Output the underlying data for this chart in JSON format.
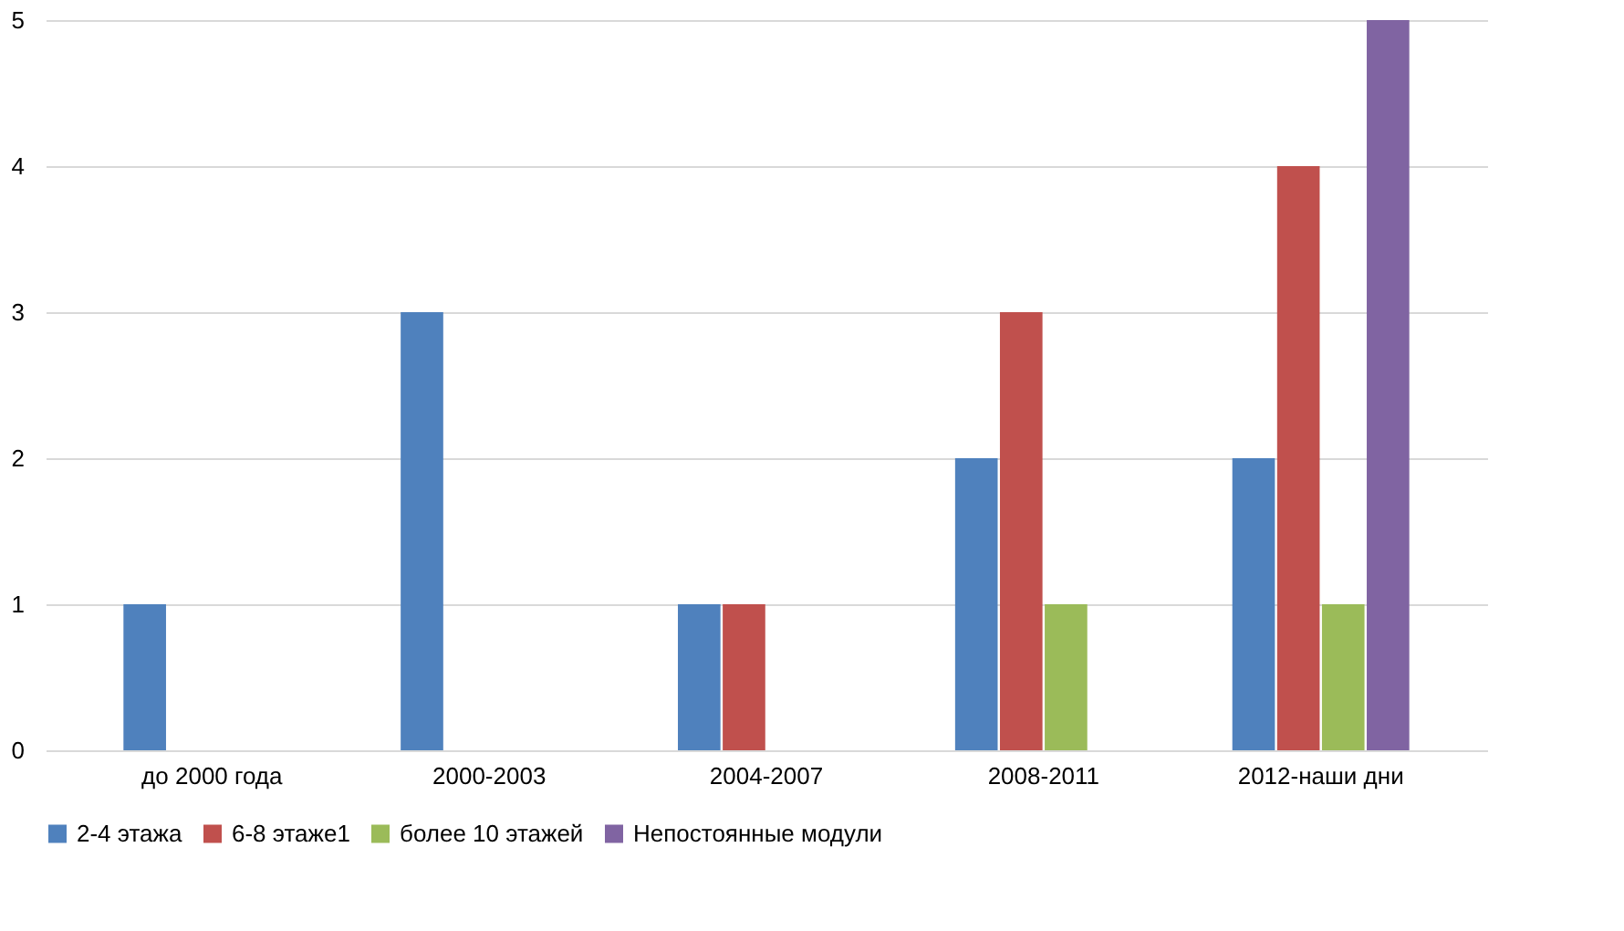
{
  "chart_data": {
    "type": "bar",
    "categories": [
      "до 2000 года",
      "2000-2003",
      "2004-2007",
      "2008-2011",
      "2012-наши дни"
    ],
    "series": [
      {
        "name": "2-4 этажа",
        "color": "#4f81bd",
        "values": [
          1,
          3,
          1,
          2,
          2
        ]
      },
      {
        "name": "6-8 этаже1",
        "color": "#c0504d",
        "values": [
          0,
          0,
          1,
          3,
          4
        ]
      },
      {
        "name": "более 10 этажей",
        "color": "#9bbb59",
        "values": [
          0,
          0,
          0,
          1,
          1
        ]
      },
      {
        "name": "Непостоянные модули",
        "color": "#8064a2",
        "values": [
          0,
          0,
          0,
          0,
          5
        ]
      }
    ],
    "ylim": [
      0,
      5
    ],
    "yticks": [
      0,
      1,
      2,
      3,
      4,
      5
    ],
    "grid": "y",
    "legend": "bottom"
  }
}
